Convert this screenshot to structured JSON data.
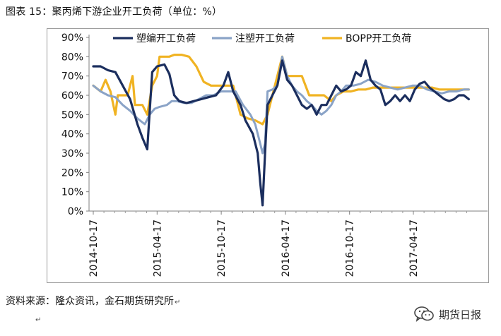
{
  "title": "图表 15：聚丙烯下游企业开工负荷（单位：%）",
  "source_text": "资料来源：隆众资讯，金石期货研究所",
  "watermark_text": "期货日报",
  "paragraph_mark": "↵",
  "chart_data": {
    "type": "line",
    "title": "图表 15：聚丙烯下游企业开工负荷（单位：%）",
    "xlabel": "",
    "ylabel": "",
    "ylim": [
      0,
      90
    ],
    "yticks": [
      "0%",
      "10%",
      "20%",
      "30%",
      "40%",
      "50%",
      "60%",
      "70%",
      "80%",
      "90%"
    ],
    "xticks": [
      "2014-10-17",
      "2015-04-17",
      "2015-10-17",
      "2016-04-17",
      "2016-10-17",
      "2017-04-17"
    ],
    "grid": false,
    "legend_position": "top",
    "series": [
      {
        "name": "塑编开工负荷",
        "color": "#1b2e5e",
        "points": [
          [
            "2014-10-17",
            75
          ],
          [
            "2014-11-07",
            75
          ],
          [
            "2014-11-28",
            73
          ],
          [
            "2014-12-19",
            72
          ],
          [
            "2015-01-09",
            65
          ],
          [
            "2015-01-30",
            58
          ],
          [
            "2015-02-20",
            45
          ],
          [
            "2015-03-06",
            38
          ],
          [
            "2015-03-20",
            32
          ],
          [
            "2015-03-27",
            52
          ],
          [
            "2015-04-03",
            72
          ],
          [
            "2015-04-17",
            75
          ],
          [
            "2015-05-08",
            76
          ],
          [
            "2015-05-22",
            71
          ],
          [
            "2015-06-05",
            60
          ],
          [
            "2015-06-19",
            57
          ],
          [
            "2015-07-10",
            56
          ],
          [
            "2015-07-31",
            57
          ],
          [
            "2015-08-21",
            58
          ],
          [
            "2015-09-11",
            59
          ],
          [
            "2015-10-02",
            60
          ],
          [
            "2015-10-23",
            65
          ],
          [
            "2015-11-06",
            72
          ],
          [
            "2015-11-20",
            62
          ],
          [
            "2015-12-11",
            55
          ],
          [
            "2015-12-25",
            47
          ],
          [
            "2016-01-15",
            40
          ],
          [
            "2016-01-29",
            30
          ],
          [
            "2016-02-05",
            15
          ],
          [
            "2016-02-12",
            3
          ],
          [
            "2016-02-19",
            30
          ],
          [
            "2016-02-26",
            55
          ],
          [
            "2016-03-11",
            60
          ],
          [
            "2016-03-25",
            65
          ],
          [
            "2016-04-08",
            78
          ],
          [
            "2016-04-22",
            68
          ],
          [
            "2016-05-06",
            65
          ],
          [
            "2016-05-20",
            60
          ],
          [
            "2016-06-03",
            55
          ],
          [
            "2016-06-17",
            53
          ],
          [
            "2016-07-01",
            55
          ],
          [
            "2016-07-15",
            50
          ],
          [
            "2016-07-29",
            55
          ],
          [
            "2016-08-12",
            55
          ],
          [
            "2016-08-26",
            60
          ],
          [
            "2016-09-09",
            65
          ],
          [
            "2016-09-23",
            62
          ],
          [
            "2016-10-07",
            63
          ],
          [
            "2016-10-21",
            65
          ],
          [
            "2016-11-04",
            72
          ],
          [
            "2016-11-18",
            70
          ],
          [
            "2016-12-02",
            78
          ],
          [
            "2016-12-16",
            68
          ],
          [
            "2016-12-30",
            65
          ],
          [
            "2017-01-13",
            63
          ],
          [
            "2017-01-27",
            55
          ],
          [
            "2017-02-10",
            57
          ],
          [
            "2017-02-24",
            60
          ],
          [
            "2017-03-10",
            57
          ],
          [
            "2017-03-24",
            60
          ],
          [
            "2017-04-07",
            57
          ],
          [
            "2017-04-21",
            63
          ],
          [
            "2017-05-05",
            66
          ],
          [
            "2017-05-19",
            67
          ],
          [
            "2017-06-02",
            64
          ],
          [
            "2017-06-16",
            62
          ],
          [
            "2017-06-30",
            60
          ],
          [
            "2017-07-14",
            58
          ],
          [
            "2017-07-28",
            57
          ],
          [
            "2017-08-11",
            58
          ],
          [
            "2017-08-25",
            60
          ],
          [
            "2017-09-08",
            60
          ],
          [
            "2017-09-22",
            58
          ]
        ]
      },
      {
        "name": "注塑开工负荷",
        "color": "#8aa3c7",
        "points": [
          [
            "2014-10-17",
            65
          ],
          [
            "2014-11-07",
            62
          ],
          [
            "2014-11-28",
            60
          ],
          [
            "2014-12-19",
            59
          ],
          [
            "2015-01-09",
            55
          ],
          [
            "2015-01-30",
            52
          ],
          [
            "2015-02-20",
            48
          ],
          [
            "2015-03-13",
            45
          ],
          [
            "2015-03-27",
            50
          ],
          [
            "2015-04-10",
            53
          ],
          [
            "2015-04-24",
            54
          ],
          [
            "2015-05-15",
            55
          ],
          [
            "2015-05-29",
            57
          ],
          [
            "2015-06-12",
            57
          ],
          [
            "2015-07-03",
            56
          ],
          [
            "2015-07-24",
            56
          ],
          [
            "2015-08-14",
            58
          ],
          [
            "2015-09-04",
            60
          ],
          [
            "2015-09-25",
            60
          ],
          [
            "2015-10-16",
            62
          ],
          [
            "2015-11-06",
            62
          ],
          [
            "2015-11-27",
            62
          ],
          [
            "2015-12-18",
            55
          ],
          [
            "2016-01-08",
            50
          ],
          [
            "2016-01-22",
            45
          ],
          [
            "2016-02-05",
            35
          ],
          [
            "2016-02-12",
            30
          ],
          [
            "2016-02-19",
            35
          ],
          [
            "2016-02-26",
            62
          ],
          [
            "2016-03-11",
            63
          ],
          [
            "2016-03-25",
            65
          ],
          [
            "2016-04-08",
            80
          ],
          [
            "2016-04-22",
            70
          ],
          [
            "2016-05-06",
            65
          ],
          [
            "2016-05-20",
            62
          ],
          [
            "2016-06-03",
            60
          ],
          [
            "2016-06-17",
            57
          ],
          [
            "2016-07-01",
            55
          ],
          [
            "2016-07-15",
            52
          ],
          [
            "2016-07-29",
            50
          ],
          [
            "2016-08-12",
            52
          ],
          [
            "2016-08-26",
            55
          ],
          [
            "2016-09-09",
            60
          ],
          [
            "2016-09-23",
            62
          ],
          [
            "2016-10-07",
            65
          ],
          [
            "2016-10-28",
            65
          ],
          [
            "2016-11-18",
            66
          ],
          [
            "2016-12-09",
            68
          ],
          [
            "2016-12-30",
            67
          ],
          [
            "2017-01-20",
            65
          ],
          [
            "2017-02-10",
            64
          ],
          [
            "2017-03-03",
            63
          ],
          [
            "2017-03-24",
            64
          ],
          [
            "2017-04-14",
            65
          ],
          [
            "2017-05-05",
            65
          ],
          [
            "2017-05-26",
            63
          ],
          [
            "2017-06-16",
            62
          ],
          [
            "2017-07-07",
            61
          ],
          [
            "2017-07-28",
            62
          ],
          [
            "2017-08-18",
            62
          ],
          [
            "2017-09-08",
            63
          ],
          [
            "2017-09-22",
            63
          ]
        ]
      },
      {
        "name": "BOPP开工负荷",
        "color": "#f0b323",
        "points": [
          [
            "2014-10-17",
            65
          ],
          [
            "2014-11-07",
            62
          ],
          [
            "2014-11-21",
            68
          ],
          [
            "2014-12-05",
            62
          ],
          [
            "2014-12-19",
            50
          ],
          [
            "2014-12-26",
            60
          ],
          [
            "2015-01-09",
            60
          ],
          [
            "2015-01-23",
            60
          ],
          [
            "2015-02-06",
            70
          ],
          [
            "2015-02-13",
            55
          ],
          [
            "2015-03-06",
            55
          ],
          [
            "2015-03-20",
            50
          ],
          [
            "2015-04-03",
            65
          ],
          [
            "2015-04-17",
            70
          ],
          [
            "2015-04-24",
            80
          ],
          [
            "2015-05-08",
            80
          ],
          [
            "2015-05-22",
            80
          ],
          [
            "2015-06-05",
            81
          ],
          [
            "2015-06-26",
            81
          ],
          [
            "2015-07-17",
            80
          ],
          [
            "2015-08-07",
            75
          ],
          [
            "2015-08-28",
            67
          ],
          [
            "2015-09-18",
            65
          ],
          [
            "2015-10-09",
            65
          ],
          [
            "2015-10-30",
            65
          ],
          [
            "2015-11-20",
            65
          ],
          [
            "2015-12-11",
            50
          ],
          [
            "2016-01-01",
            48
          ],
          [
            "2016-01-22",
            47
          ],
          [
            "2016-02-12",
            45
          ],
          [
            "2016-02-26",
            50
          ],
          [
            "2016-03-11",
            60
          ],
          [
            "2016-03-25",
            70
          ],
          [
            "2016-04-08",
            80
          ],
          [
            "2016-04-22",
            70
          ],
          [
            "2016-05-13",
            70
          ],
          [
            "2016-06-03",
            70
          ],
          [
            "2016-06-24",
            60
          ],
          [
            "2016-07-15",
            60
          ],
          [
            "2016-08-05",
            60
          ],
          [
            "2016-08-26",
            57
          ],
          [
            "2016-09-09",
            60
          ],
          [
            "2016-09-30",
            62
          ],
          [
            "2016-10-21",
            62
          ],
          [
            "2016-11-11",
            63
          ],
          [
            "2016-12-02",
            63
          ],
          [
            "2016-12-23",
            64
          ],
          [
            "2017-01-13",
            64
          ],
          [
            "2017-02-03",
            64
          ],
          [
            "2017-02-24",
            64
          ],
          [
            "2017-03-17",
            64
          ],
          [
            "2017-04-07",
            64
          ],
          [
            "2017-04-28",
            64
          ],
          [
            "2017-05-19",
            64
          ],
          [
            "2017-06-09",
            64
          ],
          [
            "2017-06-30",
            63
          ],
          [
            "2017-07-21",
            63
          ],
          [
            "2017-08-11",
            63
          ],
          [
            "2017-09-01",
            63
          ],
          [
            "2017-09-22",
            63
          ]
        ]
      }
    ]
  }
}
